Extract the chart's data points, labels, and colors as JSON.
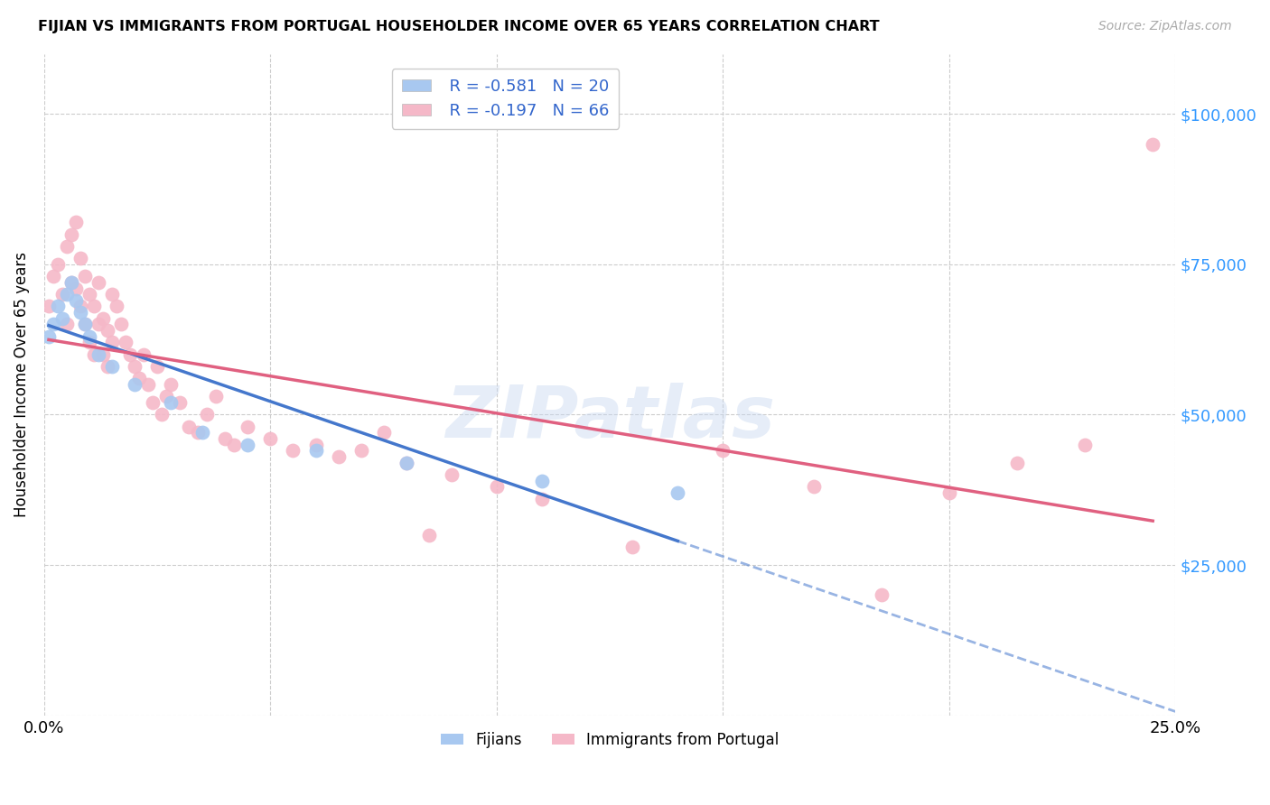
{
  "title": "FIJIAN VS IMMIGRANTS FROM PORTUGAL HOUSEHOLDER INCOME OVER 65 YEARS CORRELATION CHART",
  "source": "Source: ZipAtlas.com",
  "ylabel": "Householder Income Over 65 years",
  "xlim": [
    0.0,
    0.25
  ],
  "ylim": [
    0,
    110000
  ],
  "yticks": [
    0,
    25000,
    50000,
    75000,
    100000
  ],
  "ytick_labels": [
    "",
    "$25,000",
    "$50,000",
    "$75,000",
    "$100,000"
  ],
  "fijian_R": "-0.581",
  "fijian_N": "20",
  "portugal_R": "-0.197",
  "portugal_N": "66",
  "fijian_color": "#a8c8f0",
  "portugal_color": "#f5b8c8",
  "fijian_line_color": "#4477cc",
  "portugal_line_color": "#e06080",
  "watermark": "ZIPatlas",
  "xticks": [
    0.0,
    0.05,
    0.1,
    0.15,
    0.2,
    0.25
  ],
  "fijian_x": [
    0.001,
    0.002,
    0.003,
    0.004,
    0.005,
    0.006,
    0.007,
    0.008,
    0.009,
    0.01,
    0.012,
    0.015,
    0.02,
    0.028,
    0.035,
    0.045,
    0.06,
    0.08,
    0.11,
    0.14
  ],
  "fijian_y": [
    63000,
    65000,
    68000,
    66000,
    70000,
    72000,
    69000,
    67000,
    65000,
    63000,
    60000,
    58000,
    55000,
    52000,
    47000,
    45000,
    44000,
    42000,
    39000,
    37000
  ],
  "portugal_x": [
    0.001,
    0.002,
    0.003,
    0.004,
    0.005,
    0.005,
    0.006,
    0.006,
    0.007,
    0.007,
    0.008,
    0.008,
    0.009,
    0.009,
    0.01,
    0.01,
    0.011,
    0.011,
    0.012,
    0.012,
    0.013,
    0.013,
    0.014,
    0.014,
    0.015,
    0.015,
    0.016,
    0.017,
    0.018,
    0.019,
    0.02,
    0.021,
    0.022,
    0.023,
    0.024,
    0.025,
    0.026,
    0.027,
    0.028,
    0.03,
    0.032,
    0.034,
    0.036,
    0.038,
    0.04,
    0.042,
    0.045,
    0.05,
    0.055,
    0.06,
    0.065,
    0.07,
    0.075,
    0.08,
    0.085,
    0.09,
    0.1,
    0.11,
    0.13,
    0.15,
    0.17,
    0.185,
    0.2,
    0.215,
    0.23,
    0.245
  ],
  "portugal_y": [
    68000,
    73000,
    75000,
    70000,
    78000,
    65000,
    80000,
    72000,
    82000,
    71000,
    76000,
    68000,
    73000,
    65000,
    70000,
    62000,
    68000,
    60000,
    72000,
    65000,
    66000,
    60000,
    64000,
    58000,
    62000,
    70000,
    68000,
    65000,
    62000,
    60000,
    58000,
    56000,
    60000,
    55000,
    52000,
    58000,
    50000,
    53000,
    55000,
    52000,
    48000,
    47000,
    50000,
    53000,
    46000,
    45000,
    48000,
    46000,
    44000,
    45000,
    43000,
    44000,
    47000,
    42000,
    30000,
    40000,
    38000,
    36000,
    28000,
    44000,
    38000,
    20000,
    37000,
    42000,
    45000,
    95000
  ]
}
